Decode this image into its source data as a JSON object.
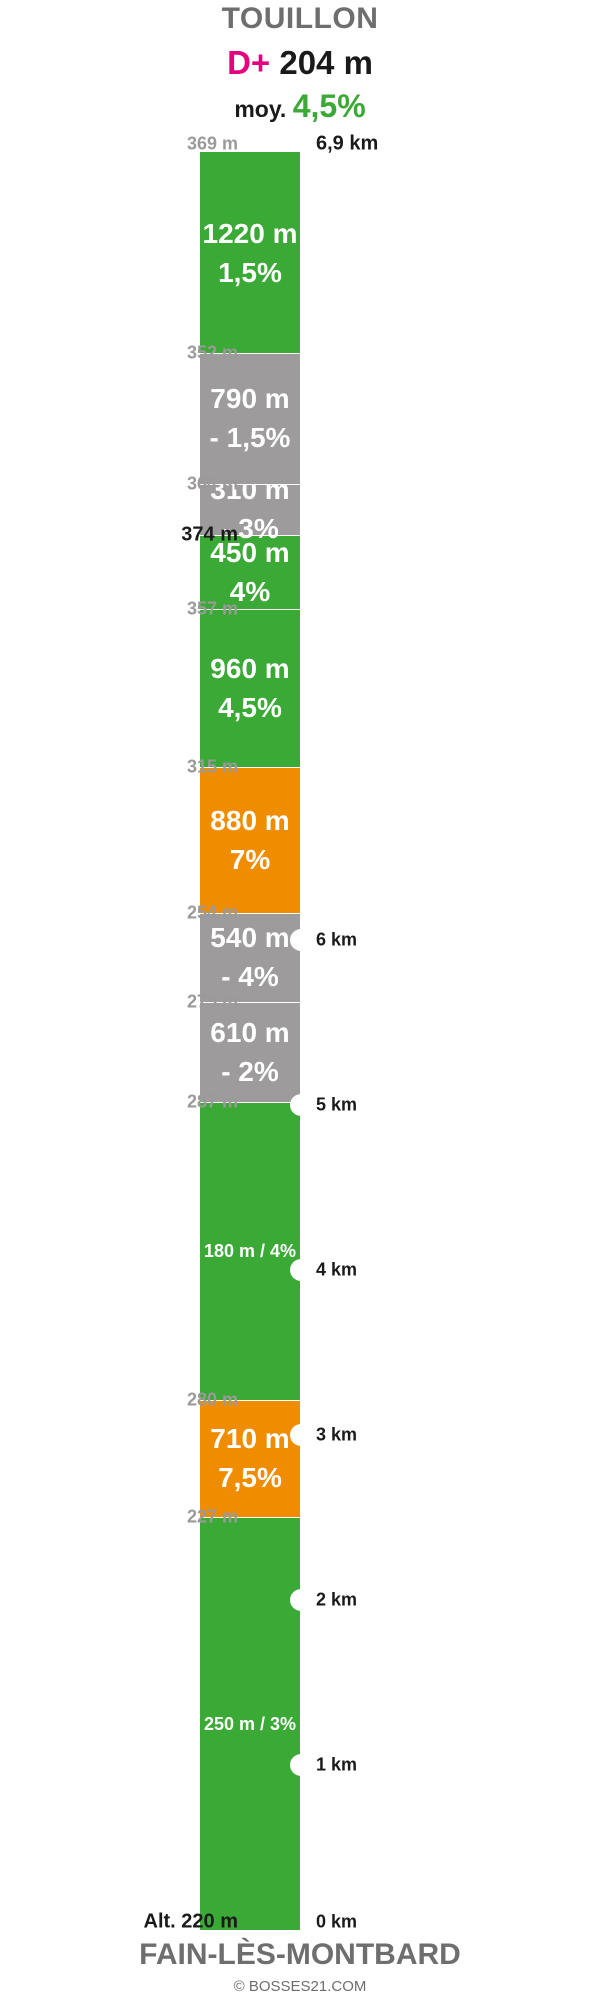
{
  "header": {
    "summit_name": "TOUILLON",
    "gain_prefix": "D+",
    "gain_value": "204 m",
    "avg_label": "moy.",
    "avg_value": "4,5%"
  },
  "colors": {
    "green": "#3aa935",
    "grey": "#9d9b9b",
    "orange": "#f08c00",
    "magenta": "#e5007e"
  },
  "segments": [
    {
      "distance": "250 m / 3%",
      "grade": "",
      "color": "green",
      "small": true
    },
    {
      "distance": "710 m",
      "grade": "7,5%",
      "color": "orange"
    },
    {
      "distance": "180 m / 4%",
      "grade": "",
      "color": "green",
      "small": true
    },
    {
      "distance": "610 m",
      "grade": "- 2%",
      "color": "grey"
    },
    {
      "distance": "540 m",
      "grade": "- 4%",
      "color": "grey"
    },
    {
      "distance": "880 m",
      "grade": "7%",
      "color": "orange"
    },
    {
      "distance": "960 m",
      "grade": "4,5%",
      "color": "green"
    },
    {
      "distance": "450 m",
      "grade": "4%",
      "color": "green"
    },
    {
      "distance": "310 m",
      "grade": "- 3%",
      "color": "grey"
    },
    {
      "distance": "790 m",
      "grade": "- 1,5%",
      "color": "grey"
    },
    {
      "distance": "1220 m",
      "grade": "1,5%",
      "color": "green"
    }
  ],
  "altitudes": [
    {
      "label": "Alt. 220 m",
      "base": true
    },
    {
      "label": "227 m"
    },
    {
      "label": "280 m"
    },
    {
      "label": "287 m"
    },
    {
      "label": "275 m"
    },
    {
      "label": "254 m"
    },
    {
      "label": "315 m"
    },
    {
      "label": "357 m"
    },
    {
      "label": "374 m",
      "highlight": true
    },
    {
      "label": "364 m"
    },
    {
      "label": "352 m"
    },
    {
      "label": "369 m"
    }
  ],
  "km_markers": [
    {
      "label": "0 km",
      "km": 0,
      "notch": false
    },
    {
      "label": "1 km",
      "km": 1,
      "notch": true
    },
    {
      "label": "2 km",
      "km": 2,
      "notch": true
    },
    {
      "label": "3 km",
      "km": 3,
      "notch": true
    },
    {
      "label": "4 km",
      "km": 4,
      "notch": true
    },
    {
      "label": "5 km",
      "km": 5,
      "notch": true
    },
    {
      "label": "6 km",
      "km": 6,
      "notch": true
    },
    {
      "label": "6,9 km",
      "km": 6.9,
      "notch": false,
      "top": true
    }
  ],
  "footer": {
    "start_name": "FAIN-LÈS-MONTBARD",
    "copyright": "© BOSSES21.COM"
  }
}
